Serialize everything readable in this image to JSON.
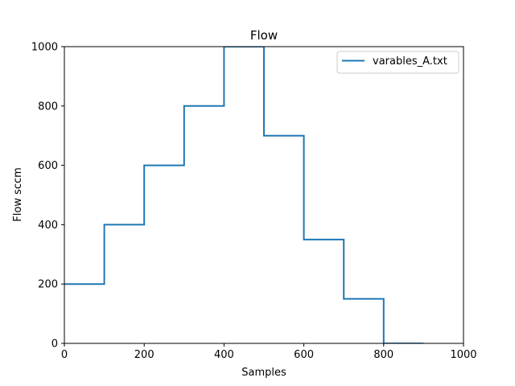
{
  "chart_data": {
    "type": "line",
    "title": "Flow",
    "xlabel": "Samples",
    "ylabel": "Flow sccm",
    "xlim": [
      0,
      1000
    ],
    "ylim": [
      0,
      1000
    ],
    "xticks": [
      0,
      200,
      400,
      600,
      800,
      1000
    ],
    "yticks": [
      0,
      200,
      400,
      600,
      800,
      1000
    ],
    "xtick_labels": [
      "0",
      "200",
      "400",
      "600",
      "800",
      "1000"
    ],
    "ytick_labels": [
      "0",
      "200",
      "400",
      "600",
      "800",
      "1000"
    ],
    "grid": false,
    "legend_position": "top-right",
    "series": [
      {
        "name": "varables_A.txt",
        "color": "#1f77b4",
        "x": [
          0,
          100,
          100,
          200,
          200,
          300,
          300,
          400,
          400,
          500,
          500,
          600,
          600,
          700,
          700,
          800,
          800,
          900
        ],
        "y": [
          200,
          200,
          400,
          400,
          600,
          600,
          800,
          800,
          1000,
          1000,
          700,
          700,
          350,
          350,
          150,
          150,
          0,
          0
        ]
      }
    ]
  }
}
